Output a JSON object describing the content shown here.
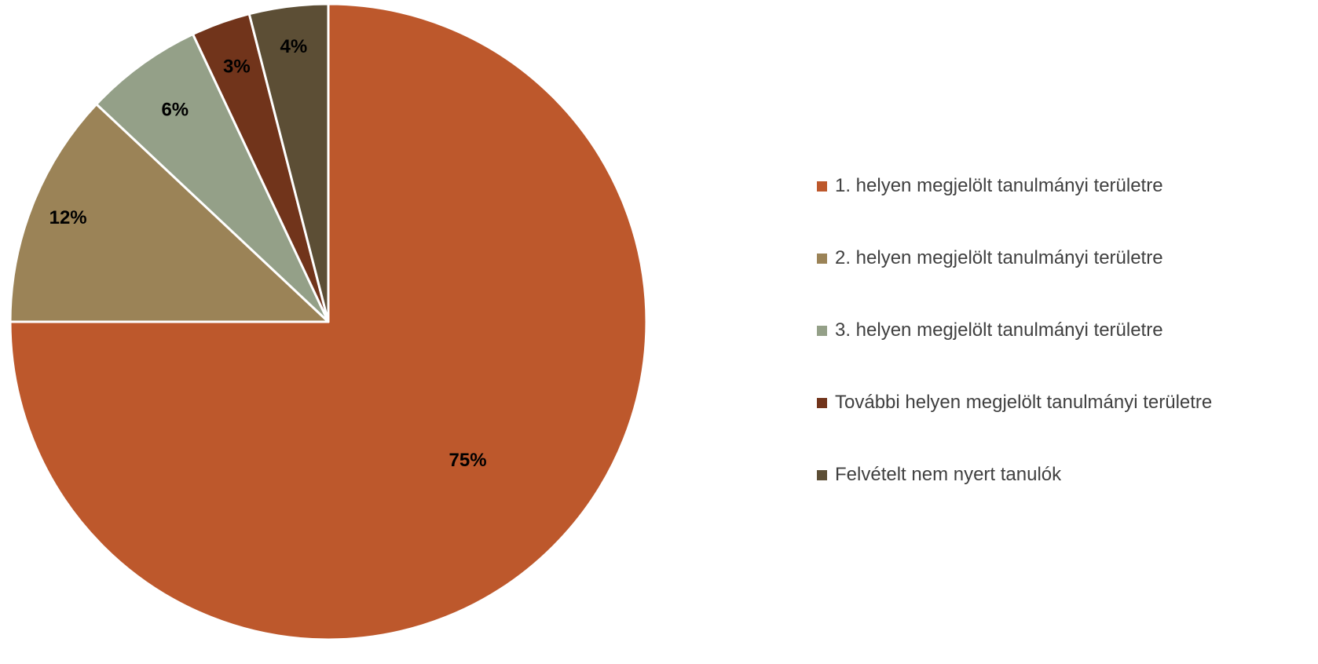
{
  "chart_data": {
    "type": "pie",
    "categories": [
      "1. helyen megjelölt tanulmányi területre",
      "2. helyen megjelölt tanulmányi területre",
      "3. helyen megjelölt tanulmányi területre",
      "További helyen megjelölt tanulmányi területre",
      "Felvételt nem nyert tanulók"
    ],
    "values": [
      75,
      12,
      6,
      3,
      4
    ],
    "data_labels": [
      "75%",
      "12%",
      "6%",
      "3%",
      "4%"
    ],
    "colors": [
      "#BD582C",
      "#9B8357",
      "#94A088",
      "#71341B",
      "#5C4E35"
    ],
    "legend_position": "right",
    "start_angle": "12 o'clock, clockwise",
    "title": ""
  }
}
